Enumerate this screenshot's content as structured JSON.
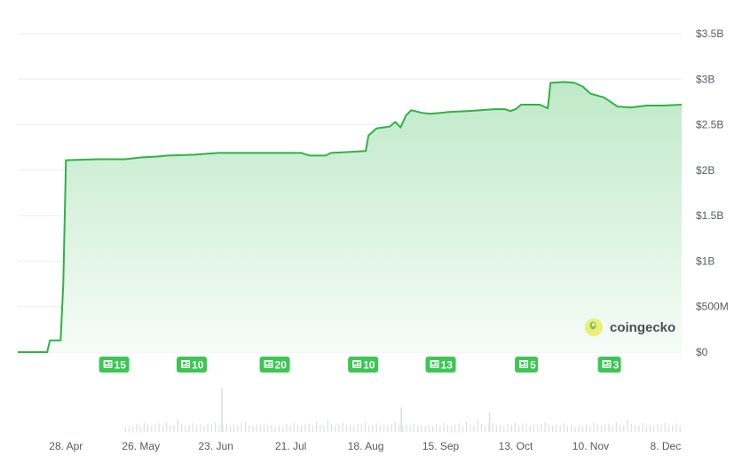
{
  "chart_data": {
    "type": "area",
    "title": "",
    "ylabel": "",
    "xlabel": "",
    "ylim": [
      0,
      3.5
    ],
    "y_unit": "B USD",
    "grid": "horizontal",
    "y_ticks": [
      {
        "value": 0,
        "label": "$0"
      },
      {
        "value": 0.5,
        "label": "$500M"
      },
      {
        "value": 1.0,
        "label": "$1B"
      },
      {
        "value": 1.5,
        "label": "$1.5B"
      },
      {
        "value": 2.0,
        "label": "$2B"
      },
      {
        "value": 2.5,
        "label": "$2.5B"
      },
      {
        "value": 3.0,
        "label": "$3B"
      },
      {
        "value": 3.5,
        "label": "$3.5B"
      }
    ],
    "x_range": [
      "2024-04-10",
      "2024-12-14"
    ],
    "x_ticks": [
      {
        "date": "2024-04-28",
        "label": "28. Apr"
      },
      {
        "date": "2024-05-26",
        "label": "26. May"
      },
      {
        "date": "2024-06-23",
        "label": "23. Jun"
      },
      {
        "date": "2024-07-21",
        "label": "21. Jul"
      },
      {
        "date": "2024-08-18",
        "label": "18. Aug"
      },
      {
        "date": "2024-09-15",
        "label": "15. Sep"
      },
      {
        "date": "2024-10-13",
        "label": "13. Oct"
      },
      {
        "date": "2024-11-10",
        "label": "10. Nov"
      },
      {
        "date": "2024-12-08",
        "label": "8. Dec"
      }
    ],
    "series": [
      {
        "color": "#2fb344",
        "points": [
          [
            "2024-04-10",
            0.0
          ],
          [
            "2024-04-21",
            0.0
          ],
          [
            "2024-04-22",
            0.13
          ],
          [
            "2024-04-26",
            0.13
          ],
          [
            "2024-04-27",
            0.75
          ],
          [
            "2024-04-28",
            2.11
          ],
          [
            "2024-05-10",
            2.12
          ],
          [
            "2024-05-20",
            2.12
          ],
          [
            "2024-05-26",
            2.14
          ],
          [
            "2024-06-01",
            2.15
          ],
          [
            "2024-06-05",
            2.16
          ],
          [
            "2024-06-15",
            2.17
          ],
          [
            "2024-06-24",
            2.19
          ],
          [
            "2024-07-05",
            2.19
          ],
          [
            "2024-07-15",
            2.19
          ],
          [
            "2024-07-25",
            2.19
          ],
          [
            "2024-07-28",
            2.16
          ],
          [
            "2024-08-03",
            2.16
          ],
          [
            "2024-08-05",
            2.19
          ],
          [
            "2024-08-18",
            2.21
          ],
          [
            "2024-08-19",
            2.38
          ],
          [
            "2024-08-22",
            2.46
          ],
          [
            "2024-08-27",
            2.48
          ],
          [
            "2024-08-29",
            2.53
          ],
          [
            "2024-08-31",
            2.47
          ],
          [
            "2024-09-02",
            2.6
          ],
          [
            "2024-09-04",
            2.66
          ],
          [
            "2024-09-08",
            2.63
          ],
          [
            "2024-09-11",
            2.62
          ],
          [
            "2024-09-15",
            2.63
          ],
          [
            "2024-09-18",
            2.64
          ],
          [
            "2024-09-25",
            2.65
          ],
          [
            "2024-10-05",
            2.67
          ],
          [
            "2024-10-09",
            2.67
          ],
          [
            "2024-10-11",
            2.65
          ],
          [
            "2024-10-13",
            2.67
          ],
          [
            "2024-10-15",
            2.72
          ],
          [
            "2024-10-22",
            2.72
          ],
          [
            "2024-10-25",
            2.68
          ],
          [
            "2024-10-26",
            2.96
          ],
          [
            "2024-10-31",
            2.97
          ],
          [
            "2024-11-04",
            2.96
          ],
          [
            "2024-11-07",
            2.92
          ],
          [
            "2024-11-10",
            2.84
          ],
          [
            "2024-11-15",
            2.8
          ],
          [
            "2024-11-20",
            2.7
          ],
          [
            "2024-11-25",
            2.69
          ],
          [
            "2024-12-01",
            2.71
          ],
          [
            "2024-12-07",
            2.71
          ],
          [
            "2024-12-14",
            2.72
          ]
        ]
      }
    ],
    "news_markers": [
      {
        "date": "2024-05-16",
        "count": "15"
      },
      {
        "date": "2024-06-14",
        "count": "10"
      },
      {
        "date": "2024-07-15",
        "count": "20"
      },
      {
        "date": "2024-08-17",
        "count": "10"
      },
      {
        "date": "2024-09-15",
        "count": "13"
      },
      {
        "date": "2024-10-17",
        "count": "5"
      },
      {
        "date": "2024-11-17",
        "count": "3"
      }
    ],
    "volume_pattern": [
      0.2,
      0.35,
      0.25,
      0.5,
      0.3,
      0.6,
      0.4,
      0.3,
      0.45,
      0.55,
      0.3,
      0.7,
      0.4,
      0.35,
      1.0,
      0.5,
      0.3,
      0.4,
      0.6,
      0.35,
      0.45,
      0.3,
      0.5,
      0.4,
      0.65,
      0.3,
      0.4,
      0.55,
      0.3,
      0.45,
      0.35,
      0.5,
      0.7,
      0.4,
      0.3,
      0.45,
      0.35,
      0.55,
      0.3,
      0.4
    ],
    "volume_peaks": [
      [
        "2024-06-25",
        1.0
      ],
      [
        "2024-08-31",
        0.55
      ],
      [
        "2024-10-03",
        0.45
      ]
    ]
  },
  "watermark": {
    "text": "coingecko"
  },
  "colors": {
    "line": "#2fb344",
    "area_top": "#bfe9c8",
    "area_bottom": "#f6fcf7",
    "badge": "#3cc654",
    "volume": "#dcdfe3"
  }
}
